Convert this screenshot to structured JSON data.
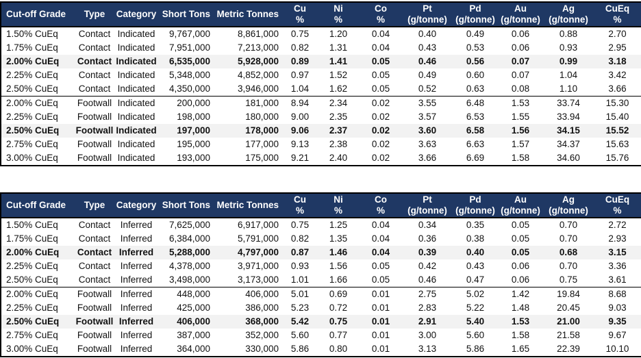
{
  "colors": {
    "header_bg": "#1f3864",
    "header_text": "#ffffff",
    "highlight_row_bg": "#f2f2f2",
    "border": "#000000",
    "body_text": "#111111"
  },
  "chart_data": [
    {
      "type": "table",
      "name": "indicated-resources",
      "columns": [
        "Cut-off Grade",
        "Type",
        "Category",
        "Short Tons",
        "Metric Tonnes",
        "Cu %",
        "Ni %",
        "Co %",
        "Pt (g/tonne)",
        "Pd (g/tonne)",
        "Au (g/tonne)",
        "Ag (g/tonne)",
        "CuEq %"
      ],
      "header_lines": [
        [
          "Cut-off Grade"
        ],
        [
          "Type"
        ],
        [
          "Category"
        ],
        [
          "Short Tons"
        ],
        [
          "Metric Tonnes"
        ],
        [
          "Cu",
          "%"
        ],
        [
          "Ni",
          "%"
        ],
        [
          "Co",
          "%"
        ],
        [
          "Pt",
          "(g/tonne)"
        ],
        [
          "Pd",
          "(g/tonne)"
        ],
        [
          "Au",
          "(g/tonne)"
        ],
        [
          "Ag",
          "(g/tonne)"
        ],
        [
          "CuEq",
          "%"
        ]
      ],
      "bold_row_indexes": [
        2,
        7
      ],
      "group_break_indexes": [
        5
      ],
      "rows": [
        [
          "1.50% CuEq",
          "Contact",
          "Indicated",
          "9,767,000",
          "8,861,000",
          "0.75",
          "1.20",
          "0.04",
          "0.40",
          "0.49",
          "0.06",
          "0.88",
          "2.70"
        ],
        [
          "1.75% CuEq",
          "Contact",
          "Indicated",
          "7,951,000",
          "7,213,000",
          "0.82",
          "1.31",
          "0.04",
          "0.43",
          "0.53",
          "0.06",
          "0.93",
          "2.95"
        ],
        [
          "2.00% CuEq",
          "Contact",
          "Indicated",
          "6,535,000",
          "5,928,000",
          "0.89",
          "1.41",
          "0.05",
          "0.46",
          "0.56",
          "0.07",
          "0.99",
          "3.18"
        ],
        [
          "2.25% CuEq",
          "Contact",
          "Indicated",
          "5,348,000",
          "4,852,000",
          "0.97",
          "1.52",
          "0.05",
          "0.49",
          "0.60",
          "0.07",
          "1.04",
          "3.42"
        ],
        [
          "2.50% CuEq",
          "Contact",
          "Indicated",
          "4,350,000",
          "3,946,000",
          "1.04",
          "1.62",
          "0.05",
          "0.52",
          "0.63",
          "0.08",
          "1.10",
          "3.66"
        ],
        [
          "2.00% CuEq",
          "Footwall",
          "Indicated",
          "200,000",
          "181,000",
          "8.94",
          "2.34",
          "0.02",
          "3.55",
          "6.48",
          "1.53",
          "33.74",
          "15.30"
        ],
        [
          "2.25% CuEq",
          "Footwall",
          "Indicated",
          "198,000",
          "180,000",
          "9.00",
          "2.35",
          "0.02",
          "3.57",
          "6.53",
          "1.55",
          "33.94",
          "15.40"
        ],
        [
          "2.50% CuEq",
          "Footwall",
          "Indicated",
          "197,000",
          "178,000",
          "9.06",
          "2.37",
          "0.02",
          "3.60",
          "6.58",
          "1.56",
          "34.15",
          "15.52"
        ],
        [
          "2.75% CuEq",
          "Footwall",
          "Indicated",
          "195,000",
          "177,000",
          "9.13",
          "2.38",
          "0.02",
          "3.63",
          "6.63",
          "1.57",
          "34.37",
          "15.63"
        ],
        [
          "3.00% CuEq",
          "Footwall",
          "Indicated",
          "193,000",
          "175,000",
          "9.21",
          "2.40",
          "0.02",
          "3.66",
          "6.69",
          "1.58",
          "34.60",
          "15.76"
        ]
      ]
    },
    {
      "type": "table",
      "name": "inferred-resources",
      "columns": [
        "Cut-off Grade",
        "Type",
        "Category",
        "Short Tons",
        "Metric Tonnes",
        "Cu %",
        "Ni %",
        "Co %",
        "Pt (g/tonne)",
        "Pd (g/tonne)",
        "Au (g/tonne)",
        "Ag (g/tonne)",
        "CuEq %"
      ],
      "header_lines": [
        [
          "Cut-off Grade"
        ],
        [
          "Type"
        ],
        [
          "Category"
        ],
        [
          "Short Tons"
        ],
        [
          "Metric Tonnes"
        ],
        [
          "Cu",
          "%"
        ],
        [
          "Ni",
          "%"
        ],
        [
          "Co",
          "%"
        ],
        [
          "Pt",
          "(g/tonne)"
        ],
        [
          "Pd",
          "(g/tonne)"
        ],
        [
          "Au",
          "(g/tonne)"
        ],
        [
          "Ag",
          "(g/tonne)"
        ],
        [
          "CuEq",
          "%"
        ]
      ],
      "bold_row_indexes": [
        2,
        7
      ],
      "group_break_indexes": [
        5
      ],
      "rows": [
        [
          "1.50% CuEq",
          "Contact",
          "Inferred",
          "7,625,000",
          "6,917,000",
          "0.75",
          "1.25",
          "0.04",
          "0.34",
          "0.35",
          "0.05",
          "0.70",
          "2.72"
        ],
        [
          "1.75% CuEq",
          "Contact",
          "Inferred",
          "6,384,000",
          "5,791,000",
          "0.82",
          "1.35",
          "0.04",
          "0.36",
          "0.38",
          "0.05",
          "0.70",
          "2.93"
        ],
        [
          "2.00% CuEq",
          "Contact",
          "Inferred",
          "5,288,000",
          "4,797,000",
          "0.87",
          "1.46",
          "0.04",
          "0.39",
          "0.40",
          "0.05",
          "0.68",
          "3.15"
        ],
        [
          "2.25% CuEq",
          "Contact",
          "Inferred",
          "4,378,000",
          "3,971,000",
          "0.93",
          "1.56",
          "0.05",
          "0.42",
          "0.43",
          "0.06",
          "0.70",
          "3.36"
        ],
        [
          "2.50% CuEq",
          "Contact",
          "Inferred",
          "3,498,000",
          "3,173,000",
          "1.01",
          "1.66",
          "0.05",
          "0.46",
          "0.47",
          "0.06",
          "0.75",
          "3.61"
        ],
        [
          "2.00% CuEq",
          "Footwall",
          "Inferred",
          "448,000",
          "406,000",
          "5.01",
          "0.69",
          "0.01",
          "2.75",
          "5.02",
          "1.42",
          "19.84",
          "8.68"
        ],
        [
          "2.25% CuEq",
          "Footwall",
          "Inferred",
          "425,000",
          "386,000",
          "5.23",
          "0.72",
          "0.01",
          "2.83",
          "5.22",
          "1.48",
          "20.45",
          "9.03"
        ],
        [
          "2.50% CuEq",
          "Footwall",
          "Inferred",
          "406,000",
          "368,000",
          "5.42",
          "0.75",
          "0.01",
          "2.91",
          "5.40",
          "1.53",
          "21.00",
          "9.35"
        ],
        [
          "2.75% CuEq",
          "Footwall",
          "Inferred",
          "387,000",
          "352,000",
          "5.60",
          "0.77",
          "0.01",
          "3.00",
          "5.60",
          "1.58",
          "21.58",
          "9.67"
        ],
        [
          "3.00% CuEq",
          "Footwall",
          "Inferred",
          "364,000",
          "330,000",
          "5.86",
          "0.80",
          "0.01",
          "3.13",
          "5.86",
          "1.65",
          "22.39",
          "10.10"
        ]
      ]
    }
  ]
}
